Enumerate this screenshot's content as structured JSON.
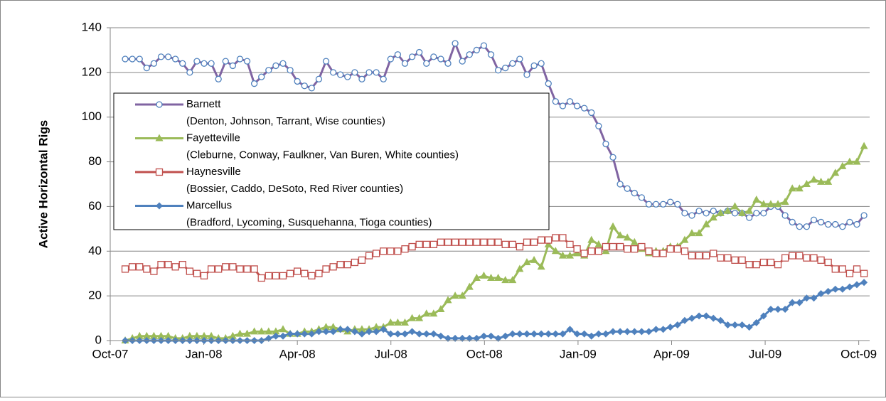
{
  "chart_data": {
    "type": "line",
    "y_label": "Active Horizontal Rigs",
    "x": [
      0.48,
      0.71,
      0.94,
      1.17,
      1.4,
      1.63,
      1.86,
      2.09,
      2.32,
      2.55,
      2.78,
      3.01,
      3.24,
      3.47,
      3.7,
      3.93,
      4.16,
      4.39,
      4.62,
      4.85,
      5.08,
      5.31,
      5.54,
      5.77,
      6.0,
      6.23,
      6.46,
      6.69,
      6.92,
      7.15,
      7.38,
      7.61,
      7.84,
      8.07,
      8.3,
      8.53,
      8.76,
      8.99,
      9.22,
      9.45,
      9.68,
      9.91,
      10.14,
      10.37,
      10.6,
      10.83,
      11.06,
      11.29,
      11.52,
      11.75,
      11.98,
      12.21,
      12.44,
      12.67,
      12.9,
      13.13,
      13.36,
      13.59,
      13.82,
      14.05,
      14.28,
      14.51,
      14.74,
      14.97,
      15.2,
      15.43,
      15.66,
      15.89,
      16.12,
      16.35,
      16.58,
      16.81,
      17.04,
      17.27,
      17.5,
      17.73,
      17.96,
      18.19,
      18.42,
      18.65,
      18.88,
      19.11,
      19.34,
      19.57,
      19.8,
      20.03,
      20.26,
      20.49,
      20.72,
      20.95,
      21.18,
      21.41,
      21.64,
      21.87,
      22.1,
      22.33,
      22.56,
      22.79,
      23.02,
      23.25,
      23.48,
      23.71,
      23.94,
      24.17
    ],
    "xlim": [
      0,
      24.35
    ],
    "xticks": [
      {
        "value": 0,
        "label": "Oct-07"
      },
      {
        "value": 3,
        "label": "Jan-08"
      },
      {
        "value": 6,
        "label": "Apr-08"
      },
      {
        "value": 9,
        "label": "Jul-08"
      },
      {
        "value": 12,
        "label": "Oct-08"
      },
      {
        "value": 15,
        "label": "Jan-09"
      },
      {
        "value": 18,
        "label": "Apr-09"
      },
      {
        "value": 21,
        "label": "Jul-09"
      },
      {
        "value": 24,
        "label": "Oct-09"
      }
    ],
    "ylim": [
      0,
      140
    ],
    "yticks": [
      0,
      20,
      40,
      60,
      80,
      100,
      120,
      140
    ],
    "grid": true,
    "series": [
      {
        "name": "Barnett",
        "detail": "(Denton, Johnson, Tarrant, Wise counties)",
        "color": "#8064a2",
        "marker": "circle",
        "marker_color": "#4f81bd",
        "values": [
          126,
          126,
          126,
          122,
          124,
          127,
          127,
          126,
          124,
          120,
          125,
          124,
          124,
          117,
          125,
          123,
          126,
          125,
          115,
          118,
          121,
          123,
          124,
          121,
          116,
          114,
          113,
          117,
          125,
          120,
          119,
          118,
          120,
          117,
          120,
          120,
          117,
          126,
          128,
          124,
          127,
          129,
          124,
          127,
          126,
          124,
          133,
          125,
          128,
          130,
          132,
          128,
          121,
          122,
          124,
          126,
          119,
          123,
          124,
          115,
          107,
          105,
          107,
          105,
          104,
          102,
          96,
          88,
          82,
          70,
          68,
          66,
          64,
          61,
          61,
          61,
          62,
          61,
          57,
          56,
          58,
          57,
          58,
          57,
          58,
          57,
          57,
          55,
          57,
          57,
          60,
          60,
          56,
          53,
          51,
          51,
          54,
          53,
          52,
          52,
          51,
          53,
          52,
          56
        ]
      },
      {
        "name": "Fayetteville",
        "detail": "(Cleburne, Conway, Faulkner, Van Buren, White counties)",
        "color": "#9bbb59",
        "marker": "triangle",
        "marker_color": "#9bbb59",
        "values": [
          0,
          1,
          2,
          2,
          2,
          2,
          2,
          1,
          1,
          2,
          2,
          2,
          2,
          1,
          1,
          2,
          3,
          3,
          4,
          4,
          4,
          4,
          5,
          3,
          3,
          4,
          4,
          5,
          6,
          6,
          5,
          4,
          5,
          5,
          5,
          6,
          6,
          8,
          8,
          8,
          10,
          10,
          12,
          12,
          14,
          18,
          20,
          20,
          24,
          28,
          29,
          28,
          28,
          27,
          27,
          32,
          35,
          36,
          33,
          43,
          40,
          38,
          38,
          39,
          38,
          45,
          43,
          40,
          51,
          47,
          46,
          44,
          41,
          39,
          40,
          40,
          42,
          42,
          45,
          48,
          48,
          52,
          55,
          57,
          58,
          60,
          57,
          58,
          63,
          61,
          61,
          61,
          62,
          68,
          68,
          70,
          72,
          71,
          71,
          75,
          78,
          80,
          80,
          87
        ]
      },
      {
        "name": "Haynesville",
        "detail": "(Bossier, Caddo, DeSoto, Red River counties)",
        "color": "#c0504d",
        "marker": "square",
        "marker_color": "#c0504d",
        "values": [
          32,
          33,
          33,
          32,
          31,
          34,
          34,
          33,
          34,
          31,
          30,
          29,
          32,
          32,
          33,
          33,
          32,
          32,
          32,
          28,
          29,
          29,
          29,
          30,
          31,
          30,
          29,
          30,
          32,
          33,
          34,
          34,
          35,
          36,
          38,
          39,
          40,
          40,
          40,
          41,
          42,
          43,
          43,
          43,
          44,
          44,
          44,
          44,
          44,
          44,
          44,
          44,
          44,
          43,
          43,
          42,
          44,
          44,
          45,
          45,
          46,
          46,
          43,
          41,
          39,
          40,
          40,
          42,
          42,
          42,
          41,
          41,
          42,
          40,
          39,
          39,
          41,
          41,
          40,
          38,
          38,
          38,
          39,
          37,
          37,
          36,
          36,
          34,
          34,
          35,
          35,
          34,
          37,
          38,
          38,
          37,
          37,
          36,
          35,
          32,
          32,
          30,
          32,
          30
        ]
      },
      {
        "name": "Marcellus",
        "detail": "(Bradford, Lycoming, Susquehanna, Tioga counties)",
        "color": "#4f81bd",
        "marker": "diamond",
        "marker_color": "#4f81bd",
        "values": [
          0,
          0,
          0,
          0,
          0,
          0,
          0,
          0,
          0,
          0,
          0,
          0,
          0,
          0,
          0,
          0,
          0,
          0,
          0,
          0,
          1,
          2,
          2,
          3,
          3,
          3,
          3,
          4,
          4,
          4,
          5,
          5,
          4,
          3,
          4,
          4,
          5,
          3,
          3,
          3,
          4,
          3,
          3,
          3,
          2,
          1,
          1,
          1,
          1,
          1,
          2,
          2,
          1,
          2,
          3,
          3,
          3,
          3,
          3,
          3,
          3,
          3,
          5,
          3,
          3,
          2,
          3,
          3,
          4,
          4,
          4,
          4,
          4,
          4,
          5,
          5,
          6,
          7,
          9,
          10,
          11,
          11,
          10,
          9,
          7,
          7,
          7,
          6,
          8,
          11,
          14,
          14,
          14,
          17,
          17,
          19,
          19,
          21,
          22,
          23,
          23,
          24,
          25,
          26
        ]
      }
    ]
  }
}
